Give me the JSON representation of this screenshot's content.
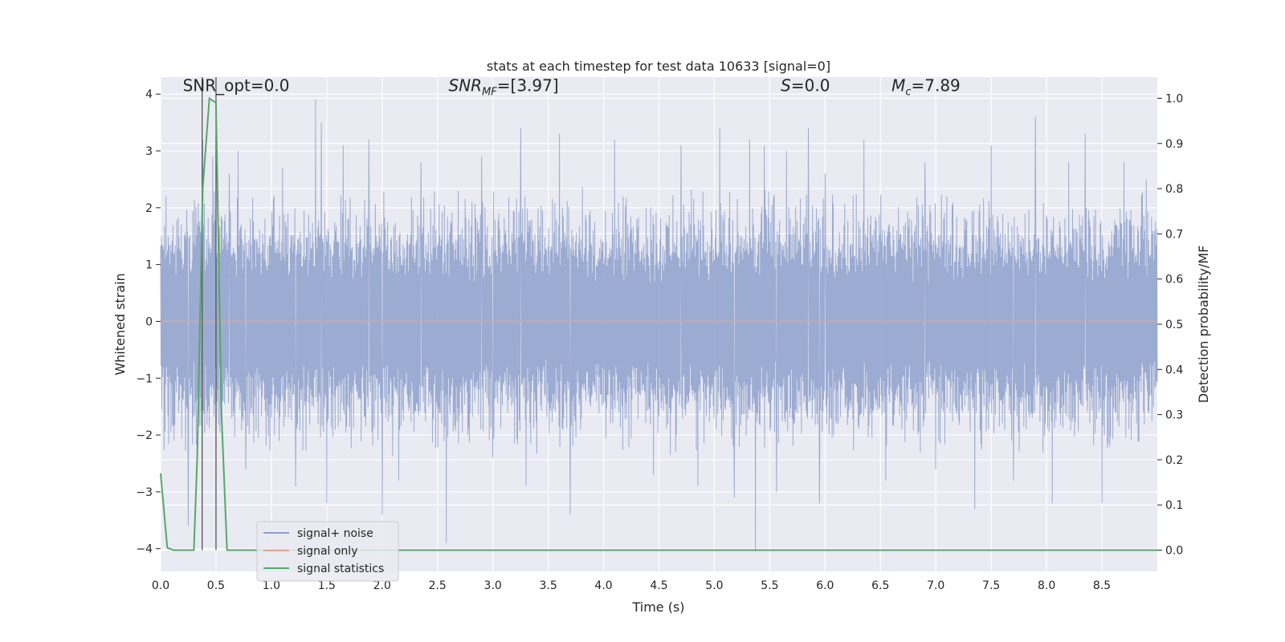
{
  "chart_data": {
    "type": "line",
    "title": "stats at each timestep for test data 10633 [signal=0]",
    "xlabel": "Time (s)",
    "ylabel": "Whitened strain",
    "y2label": "Detection probability/MF",
    "xlim": [
      0.0,
      9.0
    ],
    "ylim": [
      -4.4,
      4.3
    ],
    "y2lim": [
      -0.047,
      1.047
    ],
    "xticks": [
      0.0,
      0.5,
      1.0,
      1.5,
      2.0,
      2.5,
      3.0,
      3.5,
      4.0,
      4.5,
      5.0,
      5.5,
      6.0,
      6.5,
      7.0,
      7.5,
      8.0,
      8.5
    ],
    "xtick_labels": [
      "0.0",
      "0.5",
      "1.0",
      "1.5",
      "2.0",
      "2.5",
      "3.0",
      "3.5",
      "4.0",
      "4.5",
      "5.0",
      "5.5",
      "6.0",
      "6.5",
      "7.0",
      "7.5",
      "8.0",
      "8.5"
    ],
    "yticks": [
      -4,
      -3,
      -2,
      -1,
      0,
      1,
      2,
      3,
      4
    ],
    "ytick_labels": [
      "−4",
      "−3",
      "−2",
      "−1",
      "0",
      "1",
      "2",
      "3",
      "4"
    ],
    "y2ticks": [
      0.0,
      0.1,
      0.2,
      0.3,
      0.4,
      0.5,
      0.6,
      0.7,
      0.8,
      0.9,
      1.0
    ],
    "y2tick_labels": [
      "0.0",
      "0.1",
      "0.2",
      "0.3",
      "0.4",
      "0.5",
      "0.6",
      "0.7",
      "0.8",
      "0.9",
      "1.0"
    ],
    "grid": true,
    "legend_position": "lower-left",
    "series": [
      {
        "name": "signal+ noise",
        "color": "#8da0cb",
        "axis": "left",
        "kind": "noise",
        "duration": 9.0,
        "typical_amplitude": 2.0,
        "peaks": [
          [
            0.05,
            2.2
          ],
          [
            0.25,
            -3.6
          ],
          [
            0.38,
            3.2
          ],
          [
            0.47,
            2.9
          ],
          [
            0.62,
            2.6
          ],
          [
            0.7,
            3.0
          ],
          [
            0.77,
            -2.6
          ],
          [
            1.1,
            2.7
          ],
          [
            1.22,
            -2.9
          ],
          [
            1.4,
            3.9
          ],
          [
            1.45,
            3.5
          ],
          [
            1.5,
            -3.2
          ],
          [
            1.65,
            3.1
          ],
          [
            1.88,
            3.2
          ],
          [
            2.0,
            -3.4
          ],
          [
            2.15,
            -2.8
          ],
          [
            2.35,
            2.8
          ],
          [
            2.58,
            -3.9
          ],
          [
            2.9,
            2.9
          ],
          [
            3.0,
            -2.4
          ],
          [
            3.25,
            3.4
          ],
          [
            3.3,
            -2.9
          ],
          [
            3.6,
            3.3
          ],
          [
            3.7,
            -3.4
          ],
          [
            4.1,
            3.2
          ],
          [
            4.45,
            -2.7
          ],
          [
            4.7,
            3.1
          ],
          [
            4.85,
            -2.9
          ],
          [
            5.05,
            3.4
          ],
          [
            5.18,
            -3.1
          ],
          [
            5.32,
            3.2
          ],
          [
            5.37,
            -4.05
          ],
          [
            5.45,
            3.1
          ],
          [
            5.56,
            -3.0
          ],
          [
            5.65,
            3.0
          ],
          [
            5.85,
            3.4
          ],
          [
            5.95,
            -3.2
          ],
          [
            6.0,
            2.6
          ],
          [
            6.35,
            3.2
          ],
          [
            6.55,
            -2.8
          ],
          [
            6.9,
            2.8
          ],
          [
            7.0,
            -2.6
          ],
          [
            7.35,
            -3.3
          ],
          [
            7.5,
            3.1
          ],
          [
            7.7,
            -2.8
          ],
          [
            7.9,
            3.6
          ],
          [
            8.05,
            -3.2
          ],
          [
            8.2,
            2.8
          ],
          [
            8.35,
            3.3
          ],
          [
            8.5,
            -3.2
          ],
          [
            8.7,
            2.8
          ],
          [
            8.9,
            2.5
          ]
        ]
      },
      {
        "name": "signal only",
        "color": "#e5a58a",
        "axis": "left",
        "kind": "constant",
        "value": 0.0
      },
      {
        "name": "signal statistics",
        "color": "#55a868",
        "axis": "right",
        "kind": "line",
        "x": [
          0.0,
          0.06,
          0.12,
          0.3,
          0.33,
          0.38,
          0.44,
          0.5,
          0.55,
          0.6,
          9.0
        ],
        "y": [
          0.17,
          0.005,
          0.0,
          0.0,
          0.2,
          0.8,
          1.0,
          0.99,
          0.3,
          0.0,
          0.0
        ]
      }
    ],
    "vlines": [
      {
        "x": 0.375,
        "color": "#555555"
      },
      {
        "x": 0.5,
        "color": "#555555"
      }
    ],
    "annotations": [
      {
        "text": "SNR_opt=0.0",
        "x": 0.2,
        "y": 4.05,
        "italic": false
      },
      {
        "text_main": "SNR",
        "text_sub": "MF",
        "text_rest": "=[3.97]",
        "x": 2.6,
        "y": 4.05,
        "italic": true
      },
      {
        "text_main": "S",
        "text_sub": "",
        "text_rest": "=0.0",
        "x": 5.6,
        "y": 4.05,
        "italic": true
      },
      {
        "text_main": "M",
        "text_sub": "c",
        "text_rest": "=7.89",
        "x": 6.6,
        "y": 4.05,
        "italic": true
      }
    ]
  }
}
